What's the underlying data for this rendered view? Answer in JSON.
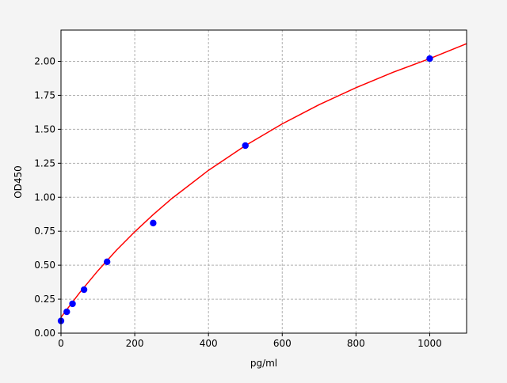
{
  "chart_data": {
    "type": "scatter",
    "title": "",
    "xlabel": "pg/ml",
    "ylabel": "OD450",
    "xlim": [
      0,
      1100
    ],
    "ylim": [
      0,
      2.23
    ],
    "xticks": [
      0,
      200,
      400,
      600,
      800,
      1000
    ],
    "xtick_labels": [
      "0",
      "200",
      "400",
      "600",
      "800",
      "1000"
    ],
    "yticks": [
      0,
      0.25,
      0.5,
      0.75,
      1.0,
      1.25,
      1.5,
      1.75,
      2.0
    ],
    "ytick_labels": [
      "0.00",
      "0.25",
      "0.50",
      "0.75",
      "1.00",
      "1.25",
      "1.50",
      "1.75",
      "2.00"
    ],
    "grid": true,
    "points": {
      "color": "#0000ff",
      "x": [
        0,
        15.6,
        31.25,
        62.5,
        125,
        250,
        500,
        1000
      ],
      "y": [
        0.09,
        0.157,
        0.216,
        0.32,
        0.525,
        0.81,
        1.38,
        2.02
      ]
    },
    "fit_curve": {
      "color": "#ff0000",
      "x": [
        0,
        50,
        100,
        150,
        200,
        250,
        300,
        400,
        500,
        600,
        700,
        800,
        900,
        1000,
        1100
      ],
      "y": [
        0.117,
        0.296,
        0.459,
        0.609,
        0.746,
        0.872,
        0.989,
        1.198,
        1.38,
        1.54,
        1.681,
        1.806,
        1.919,
        2.02,
        2.13
      ]
    }
  }
}
